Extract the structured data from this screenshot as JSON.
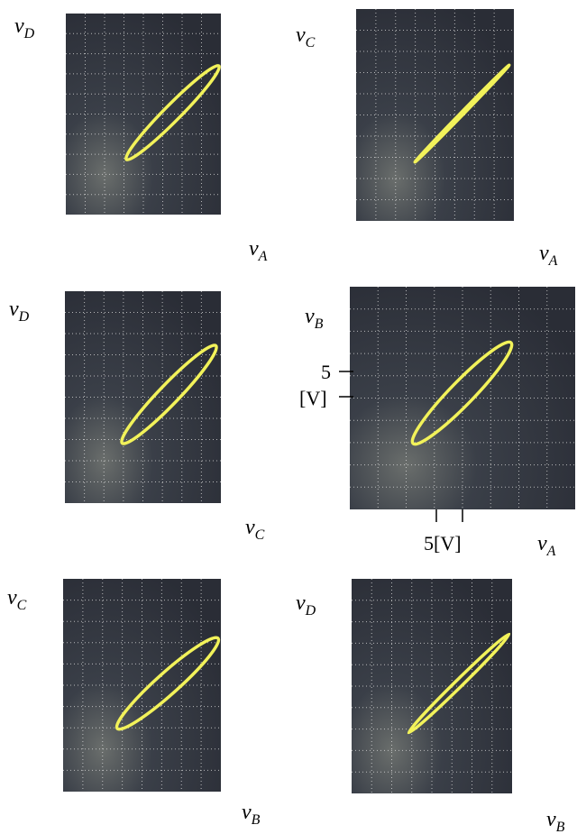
{
  "panels": [
    {
      "y_label": {
        "base": "v",
        "sub": "D"
      },
      "x_label": {
        "base": "v",
        "sub": "A"
      }
    },
    {
      "y_label": {
        "base": "v",
        "sub": "C"
      },
      "x_label": {
        "base": "v",
        "sub": "A"
      }
    },
    {
      "y_label": {
        "base": "v",
        "sub": "D"
      },
      "x_label": {
        "base": "v",
        "sub": "C"
      }
    },
    {
      "y_label": {
        "base": "v",
        "sub": "B"
      },
      "x_label": {
        "base": "v",
        "sub": "A"
      }
    },
    {
      "y_label": {
        "base": "v",
        "sub": "C"
      },
      "x_label": {
        "base": "v",
        "sub": "B"
      }
    },
    {
      "y_label": {
        "base": "v",
        "sub": "D"
      },
      "x_label": {
        "base": "v",
        "sub": "B"
      }
    }
  ],
  "scale": {
    "y_tick": "5",
    "y_unit": "[V]",
    "x_label": "5[V]"
  }
}
